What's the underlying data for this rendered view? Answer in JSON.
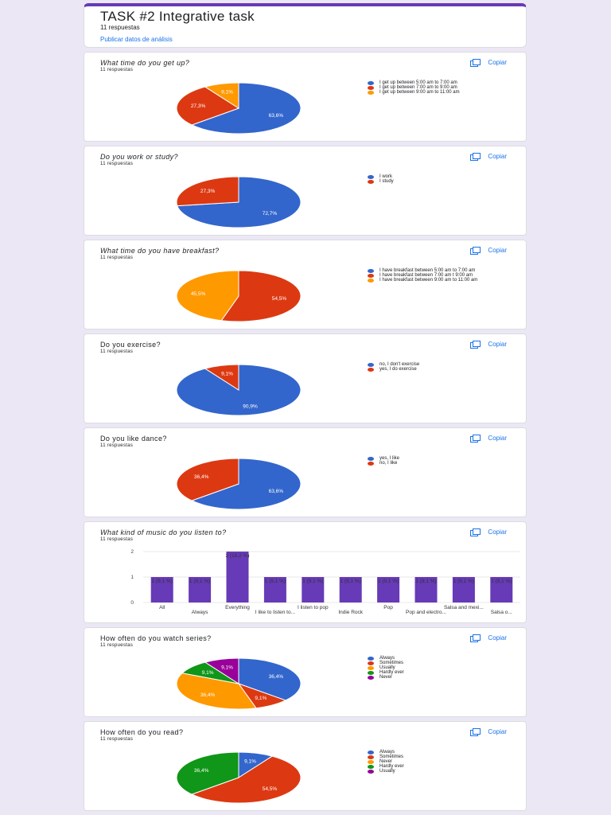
{
  "header": {
    "title": "TASK #2  Integrative task",
    "responses": "11 respuestas",
    "publish_link": "Publicar datos de análisis"
  },
  "copy_label": "Copiar",
  "questions": [
    {
      "title": "What time do you get up?",
      "responses": "11 respuestas"
    },
    {
      "title": "Do you work or study?",
      "responses": "11 respuestas"
    },
    {
      "title": "What time do you have breakfast?",
      "responses": "11 respuestas"
    },
    {
      "title": "Do you exercise?",
      "responses": "11 respuestas"
    },
    {
      "title": "Do you like dance?",
      "responses": "11 respuestas"
    },
    {
      "title": "What kind of music do you listen to?",
      "responses": "11 respuestas"
    },
    {
      "title": "How often do you watch series?",
      "responses": "11 respuestas"
    },
    {
      "title": "How often do you read?",
      "responses": "11 respuestas"
    }
  ],
  "colors": {
    "blue": "#3366cc",
    "red": "#dc3912",
    "orange": "#ff9900",
    "green": "#109618",
    "purple": "#990099",
    "bar": "#673ab7"
  },
  "chart_data": [
    {
      "type": "pie",
      "legend": [
        {
          "label": "I get up between 5:00 am to 7:00 am",
          "color": "#3366cc"
        },
        {
          "label": "I get up between 7:00 am to 9:00 am",
          "color": "#dc3912"
        },
        {
          "label": "I get up between 9:00 am to 11:00 am",
          "color": "#ff9900"
        }
      ],
      "slices": [
        {
          "label": "I get up between 5:00 am to 7:00 am",
          "value": 63.6,
          "text": "63,6%",
          "color": "#3366cc"
        },
        {
          "label": "I get up between 7:00 am to 9:00 am",
          "value": 27.3,
          "text": "27,3%",
          "color": "#dc3912"
        },
        {
          "label": "I get up between 9:00 am to 11:00 am",
          "value": 9.1,
          "text": "9,1%",
          "color": "#ff9900"
        }
      ]
    },
    {
      "type": "pie",
      "legend": [
        {
          "label": "I work",
          "color": "#3366cc"
        },
        {
          "label": "I study",
          "color": "#dc3912"
        }
      ],
      "slices": [
        {
          "label": "I work",
          "value": 72.7,
          "text": "72,7%",
          "color": "#3366cc"
        },
        {
          "label": "I study",
          "value": 27.3,
          "text": "27,3%",
          "color": "#dc3912"
        }
      ]
    },
    {
      "type": "pie",
      "legend": [
        {
          "label": "I have breakfast between 5:00 am to 7:00 am",
          "color": "#3366cc"
        },
        {
          "label": "I have breakfast between 7:00 am t 9:00 am",
          "color": "#dc3912"
        },
        {
          "label": "I have breakfast between 9:00 am to 11:00 am",
          "color": "#ff9900"
        }
      ],
      "slices": [
        {
          "label": "I have breakfast between 7:00 am t 9:00 am",
          "value": 54.5,
          "text": "54,5%",
          "color": "#dc3912"
        },
        {
          "label": "I have breakfast between 9:00 am to 11:00 am",
          "value": 45.5,
          "text": "45,5%",
          "color": "#ff9900"
        }
      ]
    },
    {
      "type": "pie",
      "legend": [
        {
          "label": "no, I don't exercise",
          "color": "#3366cc"
        },
        {
          "label": "yes, I do exercise",
          "color": "#dc3912"
        }
      ],
      "slices": [
        {
          "label": "no, I don't exercise",
          "value": 90.9,
          "text": "90,9%",
          "color": "#3366cc"
        },
        {
          "label": "yes, I do exercise",
          "value": 9.1,
          "text": "9,1%",
          "color": "#dc3912"
        }
      ]
    },
    {
      "type": "pie",
      "legend": [
        {
          "label": "yes, I like",
          "color": "#3366cc"
        },
        {
          "label": "no, I like",
          "color": "#dc3912"
        }
      ],
      "slices": [
        {
          "label": "yes, I like",
          "value": 63.6,
          "text": "63,6%",
          "color": "#3366cc"
        },
        {
          "label": "no, I like",
          "value": 36.4,
          "text": "36,4%",
          "color": "#dc3912"
        }
      ]
    },
    {
      "type": "bar",
      "categories": [
        "All",
        "Always",
        "Everything",
        "I like to listen to...",
        "I listen to pop",
        "Indie Rock",
        "Pop",
        "Pop and electro...",
        "Salsa and mexi...",
        "Salsa o..."
      ],
      "values": [
        1,
        1,
        2,
        1,
        1,
        1,
        1,
        1,
        1,
        1
      ],
      "value_labels": [
        "1 (9,1 %)",
        "1 (9,1 %)",
        "2 (18,2 %)",
        "1 (9,1 %)",
        "1 (9,1 %)",
        "1 (9,1 %)",
        "1 (9,1 %)",
        "1 (9,1 %)",
        "1 (9,1 %)",
        "1 (9,1 %)"
      ],
      "yticks": [
        "0",
        "1",
        "2"
      ],
      "ylim": [
        0,
        2
      ],
      "grid": true
    },
    {
      "type": "pie",
      "legend": [
        {
          "label": "Always",
          "color": "#3366cc"
        },
        {
          "label": "Sometimes",
          "color": "#dc3912"
        },
        {
          "label": "Usually",
          "color": "#ff9900"
        },
        {
          "label": "Hardly ever",
          "color": "#109618"
        },
        {
          "label": "Never",
          "color": "#990099"
        }
      ],
      "slices": [
        {
          "label": "Always",
          "value": 36.4,
          "text": "36,4%",
          "color": "#3366cc"
        },
        {
          "label": "Sometimes",
          "value": 9.1,
          "text": "9,1%",
          "color": "#dc3912"
        },
        {
          "label": "Usually",
          "value": 36.4,
          "text": "36,4%",
          "color": "#ff9900"
        },
        {
          "label": "Hardly ever",
          "value": 9.1,
          "text": "9,1%",
          "color": "#109618"
        },
        {
          "label": "Never",
          "value": 9.1,
          "text": "9,1%",
          "color": "#990099"
        }
      ]
    },
    {
      "type": "pie",
      "legend": [
        {
          "label": "Always",
          "color": "#3366cc"
        },
        {
          "label": "Sometimes",
          "color": "#dc3912"
        },
        {
          "label": "Never",
          "color": "#ff9900"
        },
        {
          "label": "Hardly ever",
          "color": "#109618"
        },
        {
          "label": "Usually",
          "color": "#990099"
        }
      ],
      "slices": [
        {
          "label": "Always",
          "value": 9.1,
          "text": "9,1%",
          "color": "#3366cc"
        },
        {
          "label": "Sometimes",
          "value": 54.5,
          "text": "54,5%",
          "color": "#dc3912"
        },
        {
          "label": "Hardly ever",
          "value": 36.4,
          "text": "36,4%",
          "color": "#109618"
        }
      ]
    }
  ]
}
